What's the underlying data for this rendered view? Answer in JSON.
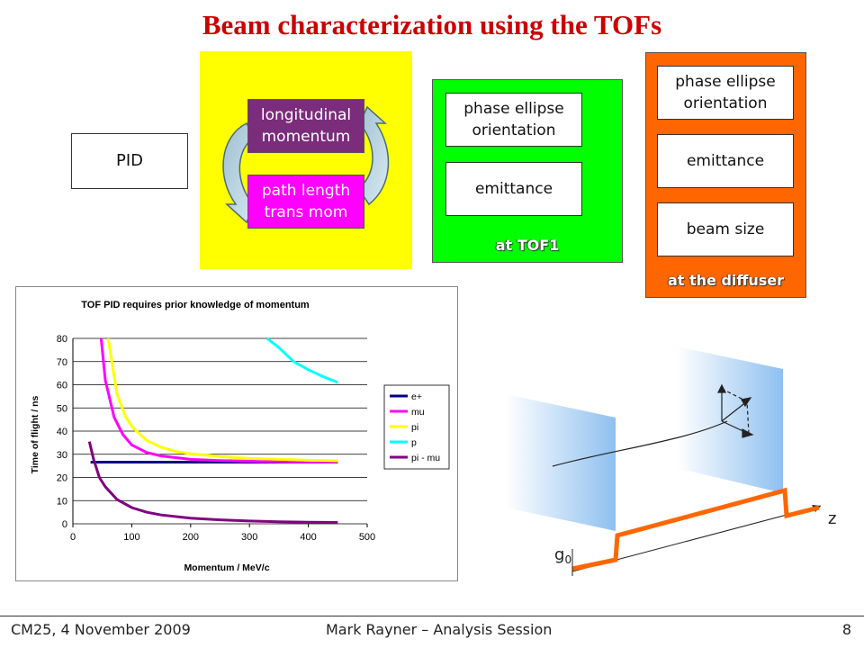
{
  "slide": {
    "title": "Beam characterization using the TOFs",
    "pid_label": "PID",
    "longitudinal_label": "longitudinal\nmomentum",
    "path_label": "path length\ntrans mom",
    "tof1": {
      "ellipse_label": "phase ellipse\norientation",
      "emittance_label": "emittance",
      "panel_label": "at TOF1"
    },
    "diffuser": {
      "ellipse_label": "phase ellipse\norientation",
      "emittance_label": "emittance",
      "beam_size_label": "beam size",
      "panel_label": "at the diffuser"
    },
    "diagram": {
      "z_label": "z",
      "g_label": "g"
    },
    "colors": {
      "yellow_panel": "#ffff00",
      "green_panel": "#00ff00",
      "orange_panel": "#ff6600",
      "purple_box": "#7b2c7b",
      "magenta_box": "#ff00ff",
      "title_red": "#cc0000"
    }
  },
  "footer": {
    "left": "CM25, 4 November 2009",
    "center": "Mark Rayner – Analysis Session",
    "page": "8"
  },
  "chart_data": {
    "type": "line",
    "title": "TOF PID requires prior knowledge of momentum",
    "xlabel": "Momentum / MeV/c",
    "ylabel": "Time of flight / ns",
    "xlim": [
      0,
      500
    ],
    "ylim": [
      0,
      80
    ],
    "xticks": [
      0,
      100,
      200,
      300,
      400,
      500
    ],
    "yticks": [
      0,
      10,
      20,
      30,
      40,
      50,
      60,
      70,
      80
    ],
    "grid": "horizontal",
    "legend_position": "right",
    "series": [
      {
        "name": "e+",
        "color": "#000080",
        "points": [
          [
            30,
            26.6
          ],
          [
            100,
            26.6
          ],
          [
            200,
            26.6
          ],
          [
            300,
            26.6
          ],
          [
            400,
            26.6
          ],
          [
            450,
            26.6
          ]
        ]
      },
      {
        "name": "mu",
        "color": "#ff00ff",
        "points": [
          [
            48,
            80
          ],
          [
            55,
            62
          ],
          [
            70,
            46
          ],
          [
            85,
            38.5
          ],
          [
            100,
            34
          ],
          [
            125,
            30.8
          ],
          [
            150,
            29.3
          ],
          [
            200,
            27.8
          ],
          [
            250,
            27.3
          ],
          [
            300,
            27.0
          ],
          [
            350,
            26.8
          ],
          [
            400,
            26.7
          ],
          [
            450,
            26.7
          ]
        ]
      },
      {
        "name": "pi",
        "color": "#ffff00",
        "points": [
          [
            60,
            80
          ],
          [
            75,
            56
          ],
          [
            90,
            46
          ],
          [
            100,
            42
          ],
          [
            125,
            36
          ],
          [
            150,
            33
          ],
          [
            175,
            31.2
          ],
          [
            200,
            30.2
          ],
          [
            250,
            29
          ],
          [
            300,
            28.2
          ],
          [
            350,
            27.8
          ],
          [
            400,
            27.4
          ],
          [
            450,
            27.2
          ]
        ]
      },
      {
        "name": "p",
        "color": "#00ffff",
        "points": [
          [
            330,
            80
          ],
          [
            350,
            76
          ],
          [
            375,
            70
          ],
          [
            400,
            66.5
          ],
          [
            425,
            63.5
          ],
          [
            450,
            61
          ]
        ]
      },
      {
        "name": "pi - mu",
        "color": "#800080",
        "points": [
          [
            28,
            35.5
          ],
          [
            35,
            28
          ],
          [
            45,
            20
          ],
          [
            55,
            16
          ],
          [
            75,
            10.5
          ],
          [
            100,
            7
          ],
          [
            125,
            5
          ],
          [
            150,
            3.8
          ],
          [
            200,
            2.4
          ],
          [
            250,
            1.7
          ],
          [
            300,
            1.2
          ],
          [
            350,
            0.9
          ],
          [
            400,
            0.7
          ],
          [
            450,
            0.6
          ]
        ]
      }
    ]
  }
}
